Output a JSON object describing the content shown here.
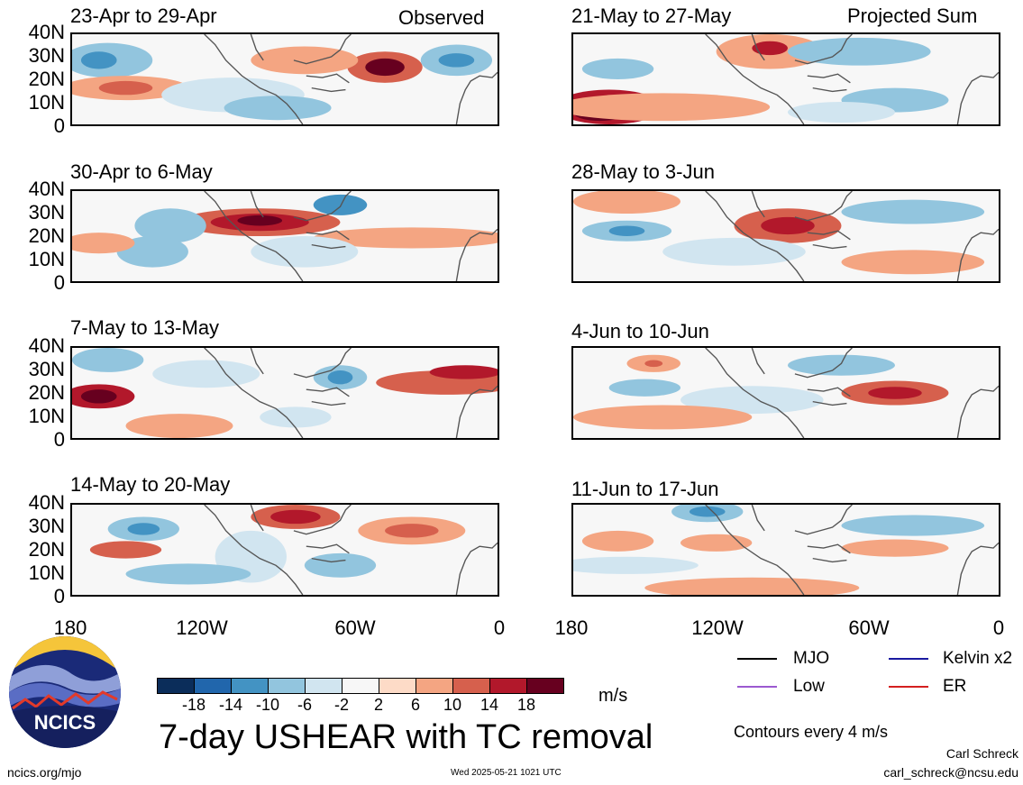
{
  "header": {
    "observed_label": "Observed",
    "projected_label": "Projected Sum"
  },
  "panels": {
    "left": [
      {
        "title": "23-Apr to 29-Apr"
      },
      {
        "title": "30-Apr to 6-May"
      },
      {
        "title": "7-May to 13-May"
      },
      {
        "title": "14-May to 20-May"
      }
    ],
    "right": [
      {
        "title": "21-May to 27-May"
      },
      {
        "title": "28-May to 3-Jun"
      },
      {
        "title": "4-Jun to 10-Jun"
      },
      {
        "title": "11-Jun to 17-Jun"
      }
    ]
  },
  "axes": {
    "y_ticks": [
      "40N",
      "30N",
      "20N",
      "10N",
      "0"
    ],
    "x_ticks": [
      "180",
      "120W",
      "60W",
      "0"
    ]
  },
  "colorbar": {
    "colors": [
      "#0b2d5a",
      "#2166ac",
      "#4393c3",
      "#92c5de",
      "#d1e5f0",
      "#f7f7f7",
      "#fddbc7",
      "#f4a582",
      "#d6604d",
      "#b2182b",
      "#67001f"
    ],
    "labels": [
      "-18",
      "-14",
      "-10",
      "-6",
      "-2",
      "2",
      "6",
      "10",
      "14",
      "18"
    ],
    "units": "m/s"
  },
  "title": "7-day USHEAR with TC removal",
  "legend": {
    "items": [
      {
        "label": "MJO",
        "color": "#000000"
      },
      {
        "label": "Kelvin x2",
        "color": "#1a1aa0"
      },
      {
        "label": "Low",
        "color": "#9b59d0"
      },
      {
        "label": "ER",
        "color": "#d42020"
      }
    ],
    "contours_note": "Contours every 4 m/s"
  },
  "footer": {
    "url": "ncics.org/mjo",
    "timestamp": "Wed 2025-05-21 1021 UTC",
    "author": "Carl Schreck",
    "email": "carl_schreck@ncsu.edu",
    "logo_text": "NCICS"
  }
}
